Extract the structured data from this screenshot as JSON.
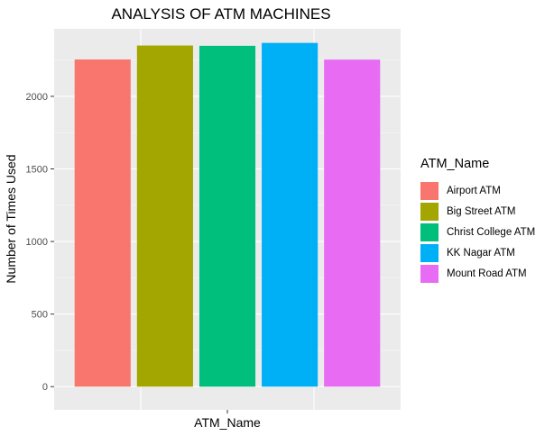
{
  "chart_data": {
    "type": "bar",
    "title": "ANALYSIS OF ATM MACHINES",
    "xlabel": "ATM_Name",
    "ylabel": "Number of Times Used",
    "categories": [
      "Airport ATM",
      "Big Street ATM",
      "Christ College ATM",
      "KK Nagar ATM",
      "Mount Road ATM"
    ],
    "values": [
      2254,
      2350,
      2348,
      2368,
      2253
    ],
    "colors": [
      "#F8766D",
      "#A3A500",
      "#00BF7D",
      "#00B0F6",
      "#E76BF3"
    ],
    "ylim": [
      -160,
      2465
    ],
    "yticks": [
      0,
      500,
      1000,
      1500,
      2000
    ],
    "ytick_labels": [
      "0",
      "500",
      "1000",
      "1500",
      "2000"
    ],
    "grid": true,
    "panel_background": "#EBEBEB",
    "legend": {
      "title": "ATM_Name",
      "position": "right",
      "items": [
        "Airport ATM",
        "Big Street ATM",
        "Christ College ATM",
        "KK Nagar ATM",
        "Mount Road ATM"
      ]
    }
  }
}
